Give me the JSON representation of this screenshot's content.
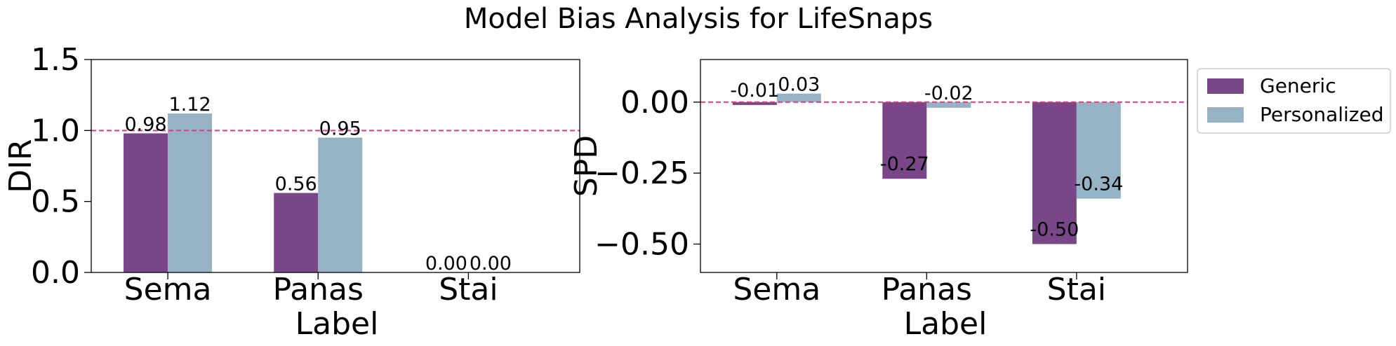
{
  "title": "Model Bias Analysis for LifeSnaps",
  "colors": {
    "generic": "#794687",
    "personalized": "#95b3c5",
    "reference_line": "#e0398a"
  },
  "legend": {
    "location": "outside-right",
    "entries": [
      "Generic",
      "Personalized"
    ]
  },
  "chart_data": [
    {
      "type": "bar",
      "categories": [
        "Sema",
        "Panas",
        "Stai"
      ],
      "xlabel": "Label",
      "ylabel": "DIR",
      "ylim": [
        0,
        1.5
      ],
      "yticks": [
        "0.0",
        "0.5",
        "1.0",
        "1.5"
      ],
      "reference_line": 1.0,
      "series": [
        {
          "name": "Generic",
          "values": [
            0.98,
            0.56,
            0.0
          ],
          "labels": [
            "0.98",
            "0.56",
            "0.00"
          ]
        },
        {
          "name": "Personalized",
          "values": [
            1.12,
            0.95,
            0.0
          ],
          "labels": [
            "1.12",
            "0.95",
            "0.00"
          ]
        }
      ]
    },
    {
      "type": "bar",
      "categories": [
        "Sema",
        "Panas",
        "Stai"
      ],
      "xlabel": "Label",
      "ylabel": "SPD",
      "ylim": [
        -0.6,
        0.15
      ],
      "yticks": [
        "−0.50",
        "−0.25",
        "0.00"
      ],
      "reference_line": 0.0,
      "series": [
        {
          "name": "Generic",
          "values": [
            -0.01,
            -0.27,
            -0.5
          ],
          "labels": [
            "-0.01",
            "-0.27",
            "-0.50"
          ]
        },
        {
          "name": "Personalized",
          "values": [
            0.03,
            -0.02,
            -0.34
          ],
          "labels": [
            "0.03",
            "-0.02",
            "-0.34"
          ]
        }
      ]
    }
  ]
}
